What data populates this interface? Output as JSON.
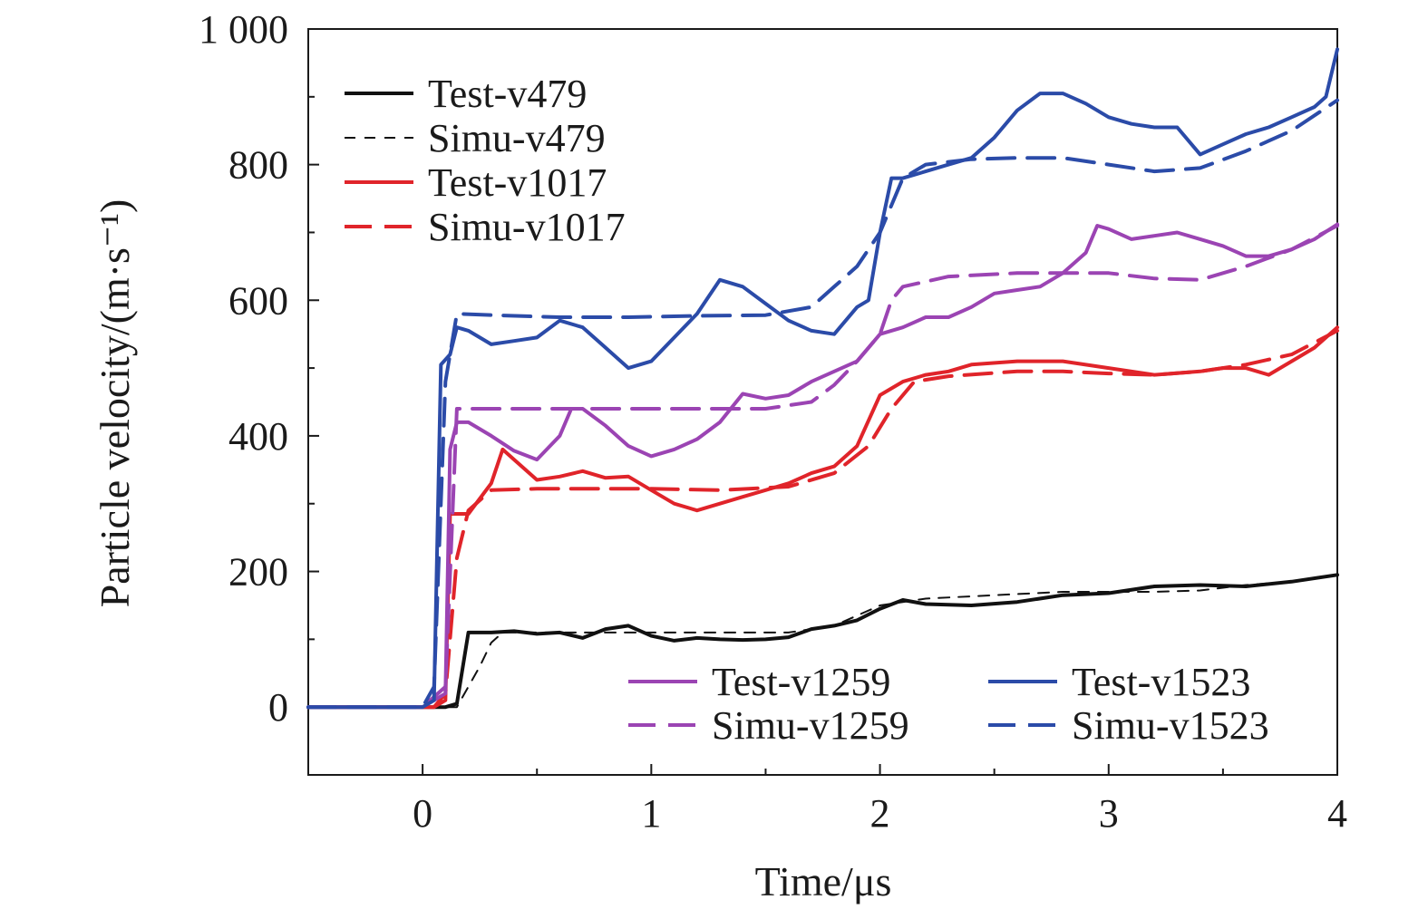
{
  "chart_data": {
    "type": "line",
    "xlabel": "Time/μs",
    "ylabel": "Particle velocity/(m·s⁻¹)",
    "xlim": [
      -0.5,
      4
    ],
    "ylim": [
      -100,
      1000
    ],
    "xticks": [
      0,
      1,
      2,
      3,
      4
    ],
    "xtick_labels": [
      "0",
      "1",
      "2",
      "3",
      "4"
    ],
    "yticks": [
      0,
      200,
      400,
      600,
      800,
      1000
    ],
    "ytick_labels": [
      "0",
      "200",
      "400",
      "600",
      "800",
      "1 000"
    ],
    "grid": false,
    "legend_placement": "top-left and bottom-right",
    "series": [
      {
        "name": "Test-v479",
        "color": "#111111",
        "style": "solid",
        "legend_group": "left",
        "points": [
          [
            -0.5,
            0
          ],
          [
            0,
            0
          ],
          [
            0.1,
            0
          ],
          [
            0.15,
            5
          ],
          [
            0.2,
            110
          ],
          [
            0.3,
            110
          ],
          [
            0.4,
            112
          ],
          [
            0.5,
            108
          ],
          [
            0.6,
            110
          ],
          [
            0.7,
            102
          ],
          [
            0.8,
            115
          ],
          [
            0.9,
            120
          ],
          [
            1.0,
            105
          ],
          [
            1.1,
            98
          ],
          [
            1.2,
            102
          ],
          [
            1.3,
            100
          ],
          [
            1.4,
            99
          ],
          [
            1.5,
            100
          ],
          [
            1.6,
            103
          ],
          [
            1.7,
            115
          ],
          [
            1.8,
            120
          ],
          [
            1.9,
            128
          ],
          [
            2.0,
            145
          ],
          [
            2.1,
            158
          ],
          [
            2.2,
            152
          ],
          [
            2.4,
            150
          ],
          [
            2.6,
            155
          ],
          [
            2.8,
            165
          ],
          [
            3.0,
            168
          ],
          [
            3.2,
            178
          ],
          [
            3.4,
            180
          ],
          [
            3.6,
            178
          ],
          [
            3.8,
            185
          ],
          [
            4.0,
            195
          ]
        ]
      },
      {
        "name": "Simu-v479",
        "color": "#111111",
        "style": "dashed-thin",
        "legend_group": "left",
        "points": [
          [
            -0.5,
            0
          ],
          [
            0,
            0
          ],
          [
            0.15,
            0
          ],
          [
            0.25,
            60
          ],
          [
            0.3,
            95
          ],
          [
            0.35,
            110
          ],
          [
            0.5,
            110
          ],
          [
            0.8,
            110
          ],
          [
            1.0,
            110
          ],
          [
            1.3,
            110
          ],
          [
            1.6,
            110
          ],
          [
            1.8,
            120
          ],
          [
            2.0,
            150
          ],
          [
            2.2,
            160
          ],
          [
            2.5,
            165
          ],
          [
            2.8,
            170
          ],
          [
            3.0,
            170
          ],
          [
            3.2,
            170
          ],
          [
            3.4,
            172
          ],
          [
            3.6,
            180
          ],
          [
            3.8,
            185
          ],
          [
            4.0,
            195
          ]
        ]
      },
      {
        "name": "Test-v1017",
        "color": "#e0242a",
        "style": "solid",
        "legend_group": "left",
        "points": [
          [
            -0.5,
            0
          ],
          [
            0.05,
            0
          ],
          [
            0.1,
            10
          ],
          [
            0.12,
            285
          ],
          [
            0.2,
            285
          ],
          [
            0.3,
            330
          ],
          [
            0.35,
            380
          ],
          [
            0.4,
            365
          ],
          [
            0.5,
            335
          ],
          [
            0.6,
            340
          ],
          [
            0.7,
            348
          ],
          [
            0.8,
            338
          ],
          [
            0.9,
            340
          ],
          [
            1.0,
            320
          ],
          [
            1.1,
            300
          ],
          [
            1.2,
            290
          ],
          [
            1.3,
            300
          ],
          [
            1.4,
            310
          ],
          [
            1.5,
            320
          ],
          [
            1.6,
            330
          ],
          [
            1.7,
            345
          ],
          [
            1.8,
            355
          ],
          [
            1.9,
            385
          ],
          [
            2.0,
            460
          ],
          [
            2.1,
            480
          ],
          [
            2.2,
            490
          ],
          [
            2.3,
            495
          ],
          [
            2.4,
            505
          ],
          [
            2.6,
            510
          ],
          [
            2.8,
            510
          ],
          [
            3.0,
            500
          ],
          [
            3.2,
            490
          ],
          [
            3.4,
            495
          ],
          [
            3.5,
            500
          ],
          [
            3.6,
            500
          ],
          [
            3.7,
            490
          ],
          [
            3.8,
            510
          ],
          [
            3.9,
            530
          ],
          [
            4.0,
            560
          ]
        ]
      },
      {
        "name": "Simu-v1017",
        "color": "#e0242a",
        "style": "dashed",
        "legend_group": "left",
        "points": [
          [
            -0.5,
            0
          ],
          [
            0.05,
            0
          ],
          [
            0.1,
            20
          ],
          [
            0.15,
            220
          ],
          [
            0.2,
            290
          ],
          [
            0.3,
            320
          ],
          [
            0.5,
            322
          ],
          [
            0.8,
            322
          ],
          [
            1.0,
            322
          ],
          [
            1.3,
            320
          ],
          [
            1.6,
            325
          ],
          [
            1.8,
            345
          ],
          [
            1.95,
            385
          ],
          [
            2.05,
            440
          ],
          [
            2.15,
            480
          ],
          [
            2.3,
            488
          ],
          [
            2.6,
            495
          ],
          [
            2.8,
            495
          ],
          [
            3.0,
            492
          ],
          [
            3.2,
            490
          ],
          [
            3.4,
            495
          ],
          [
            3.6,
            505
          ],
          [
            3.8,
            520
          ],
          [
            4.0,
            555
          ]
        ]
      },
      {
        "name": "Test-v1259",
        "color": "#9b44b3",
        "style": "solid",
        "legend_group": "right",
        "points": [
          [
            -0.5,
            0
          ],
          [
            0,
            0
          ],
          [
            0.1,
            20
          ],
          [
            0.12,
            380
          ],
          [
            0.15,
            420
          ],
          [
            0.2,
            420
          ],
          [
            0.3,
            400
          ],
          [
            0.4,
            378
          ],
          [
            0.5,
            365
          ],
          [
            0.6,
            400
          ],
          [
            0.65,
            440
          ],
          [
            0.7,
            440
          ],
          [
            0.8,
            415
          ],
          [
            0.9,
            385
          ],
          [
            1.0,
            370
          ],
          [
            1.1,
            380
          ],
          [
            1.2,
            395
          ],
          [
            1.3,
            420
          ],
          [
            1.4,
            462
          ],
          [
            1.5,
            455
          ],
          [
            1.6,
            460
          ],
          [
            1.7,
            480
          ],
          [
            1.8,
            495
          ],
          [
            1.9,
            510
          ],
          [
            2.0,
            550
          ],
          [
            2.1,
            560
          ],
          [
            2.2,
            575
          ],
          [
            2.3,
            575
          ],
          [
            2.4,
            590
          ],
          [
            2.5,
            610
          ],
          [
            2.6,
            615
          ],
          [
            2.7,
            620
          ],
          [
            2.8,
            640
          ],
          [
            2.9,
            670
          ],
          [
            2.95,
            710
          ],
          [
            3.0,
            705
          ],
          [
            3.1,
            690
          ],
          [
            3.2,
            695
          ],
          [
            3.3,
            700
          ],
          [
            3.4,
            690
          ],
          [
            3.5,
            680
          ],
          [
            3.6,
            665
          ],
          [
            3.7,
            665
          ],
          [
            3.8,
            675
          ],
          [
            3.9,
            690
          ],
          [
            4.0,
            712
          ]
        ]
      },
      {
        "name": "Simu-v1259",
        "color": "#9b44b3",
        "style": "dashed",
        "legend_group": "right",
        "points": [
          [
            -0.5,
            0
          ],
          [
            0,
            0
          ],
          [
            0.1,
            30
          ],
          [
            0.15,
            440
          ],
          [
            0.3,
            440
          ],
          [
            0.5,
            440
          ],
          [
            0.8,
            440
          ],
          [
            1.0,
            440
          ],
          [
            1.3,
            440
          ],
          [
            1.5,
            440
          ],
          [
            1.7,
            450
          ],
          [
            1.8,
            475
          ],
          [
            1.9,
            510
          ],
          [
            2.0,
            550
          ],
          [
            2.05,
            600
          ],
          [
            2.1,
            620
          ],
          [
            2.3,
            635
          ],
          [
            2.6,
            640
          ],
          [
            2.8,
            640
          ],
          [
            3.0,
            640
          ],
          [
            3.2,
            632
          ],
          [
            3.4,
            630
          ],
          [
            3.6,
            650
          ],
          [
            3.8,
            675
          ],
          [
            4.0,
            710
          ]
        ]
      },
      {
        "name": "Test-v1523",
        "color": "#2b4ba8",
        "style": "solid",
        "legend_group": "right",
        "points": [
          [
            -0.5,
            0
          ],
          [
            0,
            0
          ],
          [
            0.05,
            10
          ],
          [
            0.08,
            505
          ],
          [
            0.12,
            520
          ],
          [
            0.15,
            560
          ],
          [
            0.2,
            555
          ],
          [
            0.3,
            535
          ],
          [
            0.4,
            540
          ],
          [
            0.5,
            545
          ],
          [
            0.6,
            570
          ],
          [
            0.7,
            560
          ],
          [
            0.8,
            530
          ],
          [
            0.9,
            500
          ],
          [
            1.0,
            510
          ],
          [
            1.1,
            545
          ],
          [
            1.2,
            580
          ],
          [
            1.3,
            630
          ],
          [
            1.4,
            620
          ],
          [
            1.5,
            595
          ],
          [
            1.6,
            570
          ],
          [
            1.7,
            555
          ],
          [
            1.8,
            550
          ],
          [
            1.9,
            590
          ],
          [
            1.95,
            600
          ],
          [
            2.0,
            700
          ],
          [
            2.05,
            780
          ],
          [
            2.1,
            780
          ],
          [
            2.2,
            790
          ],
          [
            2.3,
            800
          ],
          [
            2.4,
            810
          ],
          [
            2.5,
            840
          ],
          [
            2.6,
            880
          ],
          [
            2.7,
            905
          ],
          [
            2.8,
            905
          ],
          [
            2.9,
            890
          ],
          [
            3.0,
            870
          ],
          [
            3.1,
            860
          ],
          [
            3.2,
            855
          ],
          [
            3.3,
            855
          ],
          [
            3.4,
            815
          ],
          [
            3.5,
            830
          ],
          [
            3.6,
            845
          ],
          [
            3.7,
            855
          ],
          [
            3.8,
            870
          ],
          [
            3.9,
            885
          ],
          [
            3.95,
            900
          ],
          [
            4.0,
            970
          ]
        ]
      },
      {
        "name": "Simu-v1523",
        "color": "#2b4ba8",
        "style": "dashed",
        "legend_group": "right",
        "points": [
          [
            -0.5,
            0
          ],
          [
            0,
            0
          ],
          [
            0.05,
            30
          ],
          [
            0.1,
            480
          ],
          [
            0.15,
            580
          ],
          [
            0.3,
            578
          ],
          [
            0.6,
            575
          ],
          [
            0.9,
            575
          ],
          [
            1.2,
            577
          ],
          [
            1.5,
            578
          ],
          [
            1.7,
            590
          ],
          [
            1.8,
            620
          ],
          [
            1.9,
            650
          ],
          [
            2.0,
            700
          ],
          [
            2.1,
            780
          ],
          [
            2.2,
            800
          ],
          [
            2.4,
            808
          ],
          [
            2.6,
            810
          ],
          [
            2.8,
            810
          ],
          [
            3.0,
            800
          ],
          [
            3.2,
            790
          ],
          [
            3.4,
            795
          ],
          [
            3.6,
            820
          ],
          [
            3.8,
            850
          ],
          [
            4.0,
            895
          ]
        ]
      }
    ]
  }
}
